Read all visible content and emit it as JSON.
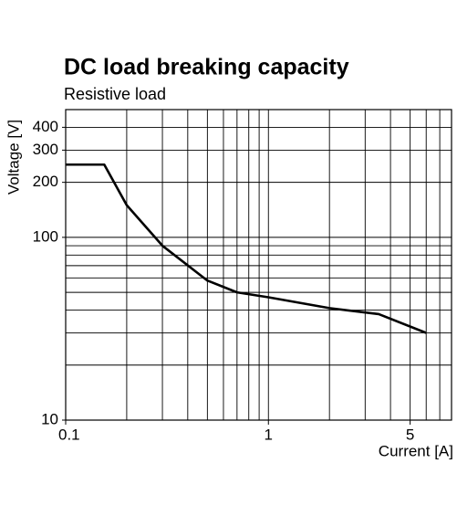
{
  "chart_data": {
    "type": "line",
    "title": "DC load breaking capacity",
    "subtitle": "Resistive load",
    "x_label": "Current [A]",
    "y_label": "Voltage [V]",
    "log_x": true,
    "log_y": true,
    "grid": true,
    "xlim": [
      0.1,
      8
    ],
    "ylim": [
      10,
      500
    ],
    "xticks": [
      0.1,
      1,
      5
    ],
    "yticks": [
      10,
      100,
      200,
      300,
      400
    ],
    "x_grid": [
      0.2,
      0.3,
      0.4,
      0.5,
      0.6,
      0.7,
      0.8,
      0.9,
      1,
      2,
      3,
      4,
      5,
      6,
      7
    ],
    "y_grid": [
      20,
      30,
      40,
      50,
      60,
      70,
      80,
      90,
      100,
      200,
      300,
      400
    ],
    "x": [
      0.1,
      0.155,
      0.2,
      0.3,
      0.5,
      0.7,
      1,
      2,
      3.5,
      6
    ],
    "series": [
      {
        "name": "Resistive load",
        "color": "#000000",
        "values": [
          250,
          250,
          150,
          90,
          58,
          50,
          47,
          41,
          38,
          30
        ]
      }
    ]
  }
}
